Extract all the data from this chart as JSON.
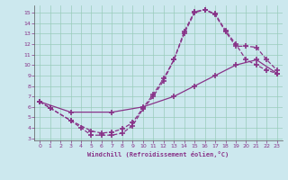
{
  "xlabel": "Windchill (Refroidissement éolien,°C)",
  "bg_color": "#cce8ee",
  "line_color": "#883388",
  "grid_color": "#99ccbb",
  "xlim": [
    -0.5,
    23.5
  ],
  "ylim": [
    2.8,
    15.7
  ],
  "xticks": [
    0,
    1,
    2,
    3,
    4,
    5,
    6,
    7,
    8,
    9,
    10,
    11,
    12,
    13,
    14,
    15,
    16,
    17,
    18,
    19,
    20,
    21,
    22,
    23
  ],
  "yticks": [
    3,
    4,
    5,
    6,
    7,
    8,
    9,
    10,
    11,
    12,
    13,
    14,
    15
  ],
  "line1_x": [
    0,
    1,
    3,
    4,
    5,
    6,
    7,
    8,
    9,
    10,
    11,
    12,
    13,
    14,
    15,
    16,
    17,
    18,
    19,
    20,
    21,
    22,
    23
  ],
  "line1_y": [
    6.5,
    5.9,
    4.7,
    4.0,
    3.3,
    3.3,
    3.3,
    3.5,
    4.2,
    5.8,
    7.0,
    8.5,
    10.5,
    13.2,
    15.1,
    15.3,
    14.8,
    13.2,
    11.8,
    11.8,
    11.7,
    10.5,
    9.5
  ],
  "line2_x": [
    0,
    1,
    3,
    5,
    6,
    7,
    8,
    9,
    10,
    11,
    12,
    13,
    14,
    15,
    16,
    17,
    18,
    19,
    20,
    21,
    22,
    23
  ],
  "line2_y": [
    6.5,
    5.9,
    4.7,
    3.7,
    3.5,
    3.6,
    3.9,
    4.5,
    5.9,
    7.2,
    8.7,
    10.5,
    13.0,
    15.0,
    15.3,
    14.9,
    13.3,
    12.0,
    10.5,
    10.0,
    9.5,
    9.2
  ],
  "line3_x": [
    0,
    3,
    7,
    10,
    13,
    15,
    17,
    19,
    21,
    23
  ],
  "line3_y": [
    6.5,
    5.5,
    5.5,
    6.0,
    7.0,
    8.0,
    9.0,
    10.0,
    10.5,
    9.2
  ]
}
